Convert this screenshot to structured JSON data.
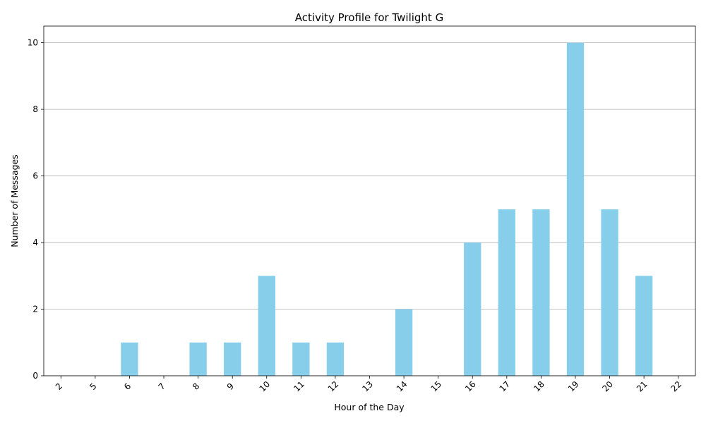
{
  "chart_data": {
    "type": "bar",
    "title": "Activity Profile for Twilight G",
    "xlabel": "Hour of the Day",
    "ylabel": "Number of Messages",
    "categories": [
      "2",
      "5",
      "6",
      "7",
      "8",
      "9",
      "10",
      "11",
      "12",
      "13",
      "14",
      "15",
      "16",
      "17",
      "18",
      "19",
      "20",
      "21",
      "22"
    ],
    "values": [
      0,
      0,
      1,
      0,
      1,
      1,
      3,
      1,
      1,
      0,
      2,
      0,
      4,
      5,
      5,
      10,
      5,
      3,
      0
    ],
    "ylim": [
      0,
      10.5
    ],
    "yticks": [
      0,
      2,
      4,
      6,
      8,
      10
    ],
    "grid": "y",
    "x_tick_rotation": 45,
    "bar_color": "#87CEEB",
    "legend": "none"
  }
}
